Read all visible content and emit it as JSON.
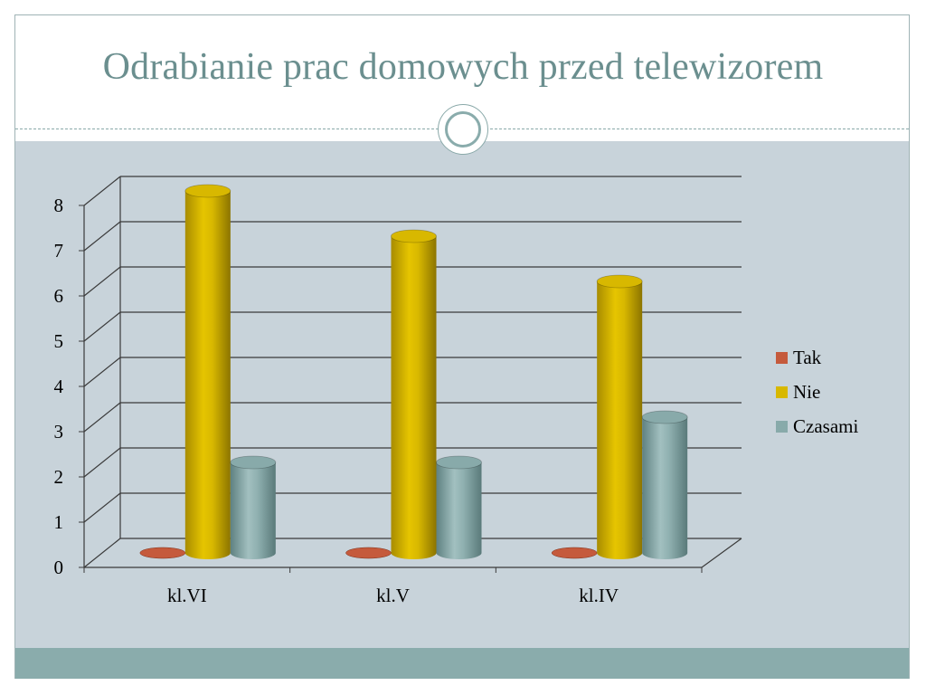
{
  "slide": {
    "title": "Odrabianie prac domowych przed telewizorem"
  },
  "colors": {
    "content_background": "#c8d3da",
    "footer_band": "#8aacac",
    "title_text": "#6b8f8f"
  },
  "chart_data": {
    "type": "bar",
    "style": "3d-cylinder",
    "categories": [
      "kl.VI",
      "kl.V",
      "kl.IV"
    ],
    "series": [
      {
        "name": "Tak",
        "values": [
          0,
          0,
          0
        ],
        "color": "#c55a3c"
      },
      {
        "name": "Nie",
        "values": [
          8,
          7,
          6
        ],
        "color": "#d8b800"
      },
      {
        "name": "Czasami",
        "values": [
          2,
          2,
          3
        ],
        "color": "#88aaaa"
      }
    ],
    "y_ticks": [
      "0",
      "1",
      "2",
      "3",
      "4",
      "5",
      "6",
      "7",
      "8"
    ],
    "ylim": [
      0,
      8
    ],
    "grid": true,
    "legend_position": "right",
    "title": "",
    "xlabel": "",
    "ylabel": ""
  }
}
